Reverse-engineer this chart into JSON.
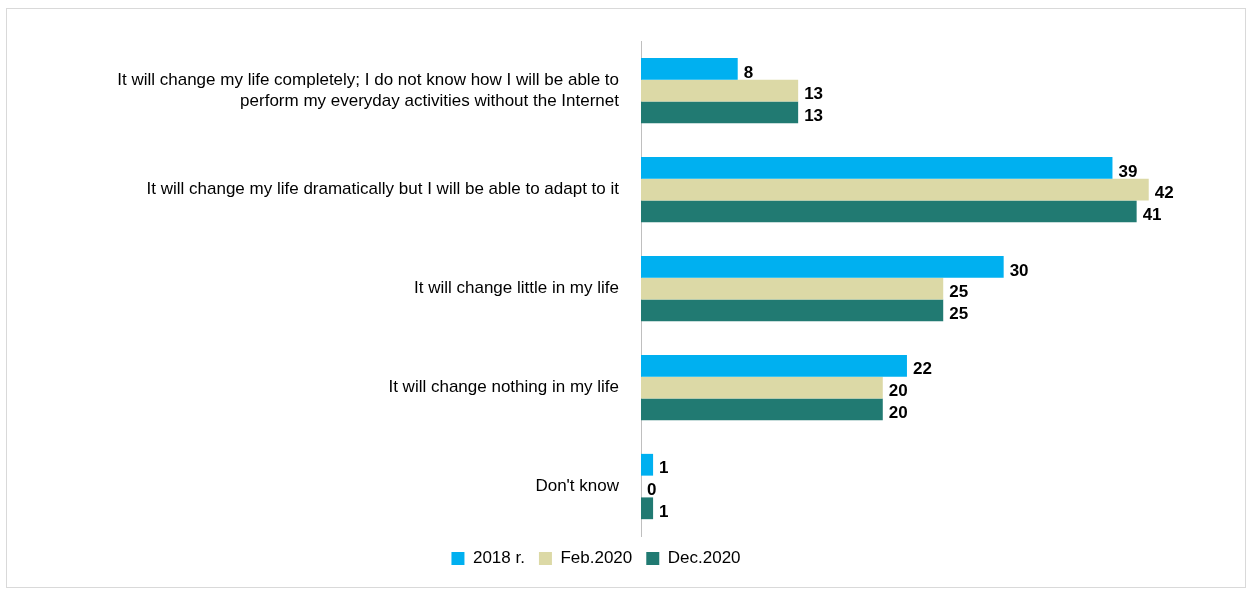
{
  "chart_data": {
    "type": "bar",
    "orientation": "horizontal",
    "categories": [
      "It will change my life completely; I do not know how I will be able to perform my everyday activities without the Internet",
      "It will change my life dramatically but I will be able to adapt to it",
      "It will change little in my life",
      "It will change nothing in my life",
      "Don't know"
    ],
    "series": [
      {
        "name": "2018 r.",
        "color": "#00b0f0",
        "values": [
          8,
          39,
          30,
          22,
          1
        ]
      },
      {
        "name": "Feb.2020",
        "color": "#dcd9a6",
        "values": [
          13,
          42,
          25,
          20,
          0
        ]
      },
      {
        "name": "Dec.2020",
        "color": "#217a72",
        "values": [
          13,
          41,
          25,
          20,
          1
        ]
      }
    ],
    "data_labels": true,
    "tick_labels": "y",
    "legend": "bottom"
  }
}
